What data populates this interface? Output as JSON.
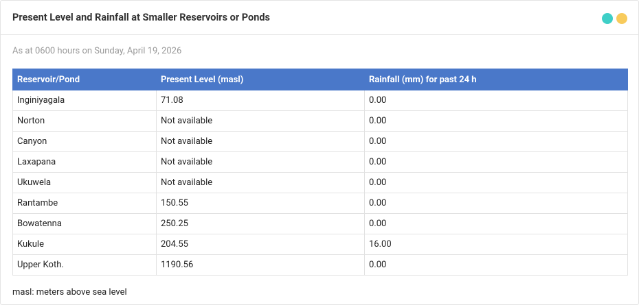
{
  "header": {
    "title": "Present Level and Rainfall at Smaller Reservoirs or Ponds"
  },
  "subtitle": "As at 0600 hours on Sunday, April 19, 2026",
  "table": {
    "columns": [
      "Reservoir/Pond",
      "Present Level (masl)",
      "Rainfall (mm) for past 24 h"
    ],
    "rows": [
      [
        "Inginiyagala",
        "71.08",
        "0.00"
      ],
      [
        "Norton",
        "Not available",
        "0.00"
      ],
      [
        "Canyon",
        "Not available",
        "0.00"
      ],
      [
        "Laxapana",
        "Not available",
        "0.00"
      ],
      [
        "Ukuwela",
        "Not available",
        "0.00"
      ],
      [
        "Rantambe",
        "150.55",
        "0.00"
      ],
      [
        "Bowatenna",
        "250.25",
        "0.00"
      ],
      [
        "Kukule",
        "204.55",
        "16.00"
      ],
      [
        "Upper Koth.",
        "1190.56",
        "0.00"
      ]
    ]
  },
  "footnote": "masl: meters above sea level"
}
